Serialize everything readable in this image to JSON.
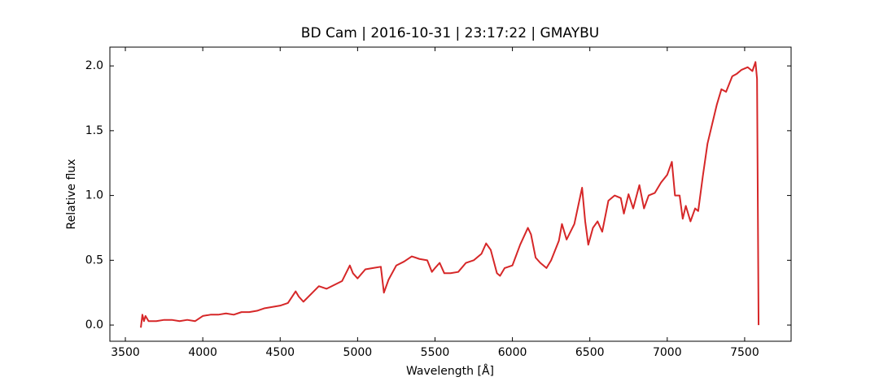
{
  "chart_data": {
    "type": "line",
    "title": "BD Cam | 2016-10-31 | 23:17:22 | GMAYBU",
    "xlabel": "Wavelength [Å]",
    "ylabel": "Relative flux",
    "color": "#d62728",
    "xlim": [
      3400,
      7800
    ],
    "ylim": [
      -0.125,
      2.145
    ],
    "xticks": [
      3500,
      4000,
      4500,
      5000,
      5500,
      6000,
      6500,
      7000,
      7500
    ],
    "yticks": [
      {
        "value": 0,
        "label": "0.0"
      },
      {
        "value": 0.5,
        "label": "0.5"
      },
      {
        "value": 1,
        "label": "1.0"
      },
      {
        "value": 1.5,
        "label": "1.5"
      },
      {
        "value": 2,
        "label": "2.0"
      }
    ],
    "x": [
      3600,
      3610,
      3620,
      3630,
      3650,
      3700,
      3750,
      3800,
      3850,
      3900,
      3950,
      4000,
      4050,
      4100,
      4150,
      4200,
      4250,
      4300,
      4350,
      4400,
      4450,
      4500,
      4550,
      4600,
      4620,
      4650,
      4700,
      4750,
      4800,
      4850,
      4900,
      4950,
      4970,
      5000,
      5050,
      5100,
      5150,
      5170,
      5200,
      5250,
      5300,
      5350,
      5400,
      5450,
      5480,
      5500,
      5530,
      5560,
      5600,
      5650,
      5700,
      5750,
      5800,
      5830,
      5860,
      5900,
      5920,
      5950,
      6000,
      6050,
      6100,
      6120,
      6150,
      6180,
      6220,
      6250,
      6300,
      6320,
      6350,
      6400,
      6450,
      6470,
      6490,
      6520,
      6550,
      6580,
      6620,
      6660,
      6700,
      6720,
      6750,
      6780,
      6820,
      6850,
      6880,
      6920,
      6960,
      7000,
      7030,
      7050,
      7080,
      7100,
      7120,
      7150,
      7180,
      7200,
      7230,
      7260,
      7290,
      7320,
      7350,
      7380,
      7420,
      7450,
      7480,
      7520,
      7550,
      7570,
      7580,
      7590
    ],
    "values": [
      -0.02,
      0.08,
      0.03,
      0.07,
      0.03,
      0.03,
      0.04,
      0.04,
      0.03,
      0.04,
      0.03,
      0.07,
      0.08,
      0.08,
      0.09,
      0.08,
      0.1,
      0.1,
      0.11,
      0.13,
      0.14,
      0.15,
      0.17,
      0.26,
      0.22,
      0.18,
      0.24,
      0.3,
      0.28,
      0.31,
      0.34,
      0.46,
      0.4,
      0.36,
      0.43,
      0.44,
      0.45,
      0.25,
      0.35,
      0.46,
      0.49,
      0.53,
      0.51,
      0.5,
      0.41,
      0.44,
      0.48,
      0.4,
      0.4,
      0.41,
      0.48,
      0.5,
      0.55,
      0.63,
      0.58,
      0.4,
      0.38,
      0.44,
      0.46,
      0.62,
      0.75,
      0.7,
      0.52,
      0.48,
      0.44,
      0.5,
      0.65,
      0.78,
      0.66,
      0.78,
      1.06,
      0.8,
      0.62,
      0.75,
      0.8,
      0.72,
      0.96,
      1.0,
      0.98,
      0.86,
      1.01,
      0.9,
      1.08,
      0.9,
      1.0,
      1.02,
      1.1,
      1.16,
      1.26,
      1.0,
      1.0,
      0.82,
      0.92,
      0.8,
      0.9,
      0.88,
      1.15,
      1.4,
      1.55,
      1.7,
      1.82,
      1.8,
      1.92,
      1.94,
      1.97,
      1.99,
      1.96,
      2.03,
      1.9,
      0.0
    ]
  }
}
